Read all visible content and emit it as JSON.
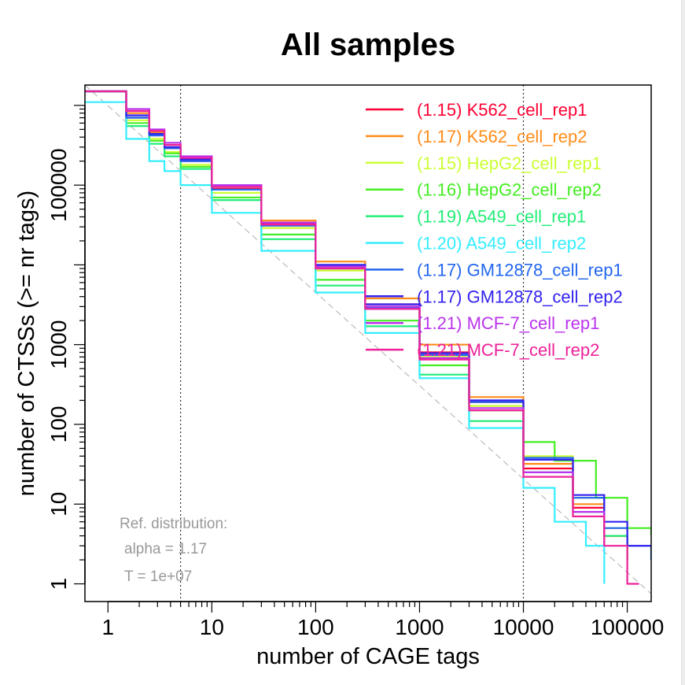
{
  "chart_data": {
    "type": "line",
    "title": "All samples",
    "xlabel": "number of CAGE tags",
    "ylabel": "number of CTSSs (>= nr tags)",
    "x_scale": "log",
    "y_scale": "log",
    "xlim": [
      0.6,
      170000
    ],
    "ylim": [
      0.6,
      1800000
    ],
    "x_ticks": [
      1,
      10,
      100,
      1000,
      10000,
      100000
    ],
    "x_tick_labels": [
      "1",
      "10",
      "100",
      "1000",
      "10000",
      "100000"
    ],
    "y_ticks": [
      1,
      10,
      100,
      1000,
      100000
    ],
    "y_tick_labels": [
      "1",
      "10",
      "100",
      "1000",
      "100000"
    ],
    "vlines": [
      5,
      10000
    ],
    "grid": false,
    "legend_position": "top-right",
    "reference": {
      "label_lines": [
        "Ref. distribution:",
        "alpha = 1.17",
        "T = 1e+07"
      ],
      "alpha": 1.17,
      "T": 10000000,
      "color": "#bbbbbb"
    },
    "series": [
      {
        "name": "(1.15) K562_cell_rep1",
        "color": "#ff0033",
        "x": [
          0.6,
          1.5,
          2.5,
          3.5,
          5,
          10,
          30,
          100,
          300,
          1000,
          3000,
          10000,
          30000,
          60000,
          100000
        ],
        "y": [
          1500000,
          700000,
          420000,
          290000,
          200000,
          90000,
          33000,
          9500,
          3200,
          800,
          190,
          28,
          9,
          4,
          2
        ]
      },
      {
        "name": "(1.17) K562_cell_rep2",
        "color": "#ff8c1a",
        "x": [
          0.6,
          1.5,
          2.5,
          3.5,
          5,
          10,
          30,
          100,
          300,
          1000,
          3000,
          10000,
          30000,
          60000,
          100000
        ],
        "y": [
          1500000,
          800000,
          460000,
          320000,
          220000,
          100000,
          36000,
          11000,
          3800,
          1000,
          220,
          32,
          10,
          4,
          2
        ]
      },
      {
        "name": "(1.15) HepG2_cell_rep1",
        "color": "#ccff33",
        "x": [
          0.6,
          1.5,
          2.5,
          3.5,
          5,
          10,
          30,
          100,
          300,
          1000,
          3000,
          10000,
          30000,
          60000,
          100000
        ],
        "y": [
          1500000,
          650000,
          380000,
          260000,
          180000,
          80000,
          29000,
          8500,
          2800,
          700,
          170,
          40,
          12,
          5,
          2
        ]
      },
      {
        "name": "(1.16) HepG2_cell_rep2",
        "color": "#44ee22",
        "x": [
          0.6,
          1.5,
          2.5,
          3.5,
          5,
          10,
          30,
          100,
          300,
          1000,
          3000,
          10000,
          20000,
          50000,
          100000,
          170000
        ],
        "y": [
          1500000,
          600000,
          360000,
          250000,
          170000,
          70000,
          24000,
          6500,
          2000,
          550,
          150,
          60,
          35,
          12,
          5,
          4
        ]
      },
      {
        "name": "(1.19) A549_cell_rep1",
        "color": "#22ee77",
        "x": [
          0.6,
          1.5,
          2.5,
          3.5,
          5,
          10,
          30,
          100,
          300,
          1000,
          3000,
          10000,
          30000,
          60000,
          100000
        ],
        "y": [
          1500000,
          550000,
          330000,
          230000,
          160000,
          65000,
          21000,
          5500,
          1700,
          420,
          110,
          25,
          8,
          4,
          2
        ]
      },
      {
        "name": "(1.20) A549_cell_rep2",
        "color": "#33eeff",
        "x": [
          0.6,
          1.5,
          2.5,
          3.5,
          5,
          10,
          30,
          100,
          300,
          1000,
          3000,
          10000,
          20000,
          40000,
          60000
        ],
        "y": [
          1100000,
          380000,
          200000,
          150000,
          100000,
          45000,
          15000,
          4500,
          1400,
          380,
          90,
          16,
          6,
          3,
          1
        ]
      },
      {
        "name": "(1.17) GM12878_cell_rep1",
        "color": "#2266ee",
        "x": [
          0.6,
          1.5,
          2.5,
          3.5,
          5,
          10,
          30,
          100,
          300,
          1000,
          3000,
          10000,
          30000,
          60000,
          100000,
          170000
        ],
        "y": [
          1500000,
          700000,
          420000,
          290000,
          200000,
          88000,
          31000,
          9000,
          2900,
          740,
          190,
          38,
          12,
          5,
          3,
          2
        ]
      },
      {
        "name": "(1.17) GM12878_cell_rep2",
        "color": "#3322ee",
        "x": [
          0.6,
          1.5,
          2.5,
          3.5,
          5,
          10,
          30,
          100,
          300,
          1000,
          3000,
          10000,
          30000,
          60000,
          100000,
          170000
        ],
        "y": [
          1500000,
          750000,
          440000,
          300000,
          210000,
          95000,
          34000,
          10000,
          3200,
          780,
          200,
          36,
          13,
          6,
          3,
          3
        ]
      },
      {
        "name": "(1.21) MCF-7_cell_rep1",
        "color": "#bb33ee",
        "x": [
          0.6,
          1.5,
          2.5,
          3.5,
          5,
          10,
          30,
          100,
          300,
          1000,
          3000,
          10000,
          30000,
          60000
        ],
        "y": [
          1500000,
          900000,
          500000,
          340000,
          230000,
          100000,
          34000,
          9500,
          3000,
          680,
          160,
          25,
          8,
          3
        ]
      },
      {
        "name": "(1.21) MCF-7_cell_rep2",
        "color": "#ee2299",
        "x": [
          0.6,
          1.5,
          2.5,
          3.5,
          5,
          10,
          30,
          100,
          300,
          1000,
          3000,
          10000,
          30000,
          60000,
          100000,
          130000
        ],
        "y": [
          1500000,
          850000,
          480000,
          320000,
          220000,
          95000,
          32000,
          9000,
          2800,
          650,
          150,
          22,
          7,
          3,
          1,
          1
        ]
      }
    ]
  }
}
